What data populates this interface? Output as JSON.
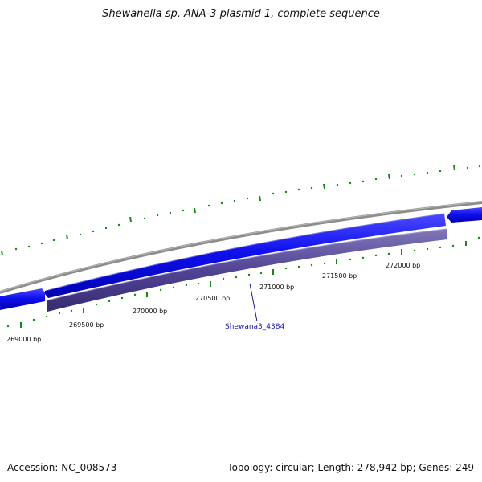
{
  "map": {
    "title": "Shewanella sp. ANA-3 plasmid 1, complete sequence",
    "accession": "Accession: NC_008573",
    "summary": "Topology: circular; Length: 278,942 bp; Genes: 249"
  },
  "colors": {
    "backbone": "#8c8c8c",
    "gene_forward": "#0000ee",
    "gene_highlight": "#4b3f8c",
    "tick": "#138a13",
    "gene_label": "#1a1aaa"
  },
  "ticks": {
    "labels": [
      "269000 bp",
      "269500 bp",
      "270000 bp",
      "270500 bp",
      "271000 bp",
      "271500 bp",
      "272000 bp"
    ]
  },
  "genes": {
    "highlight_label": "Shewana3_4384"
  }
}
